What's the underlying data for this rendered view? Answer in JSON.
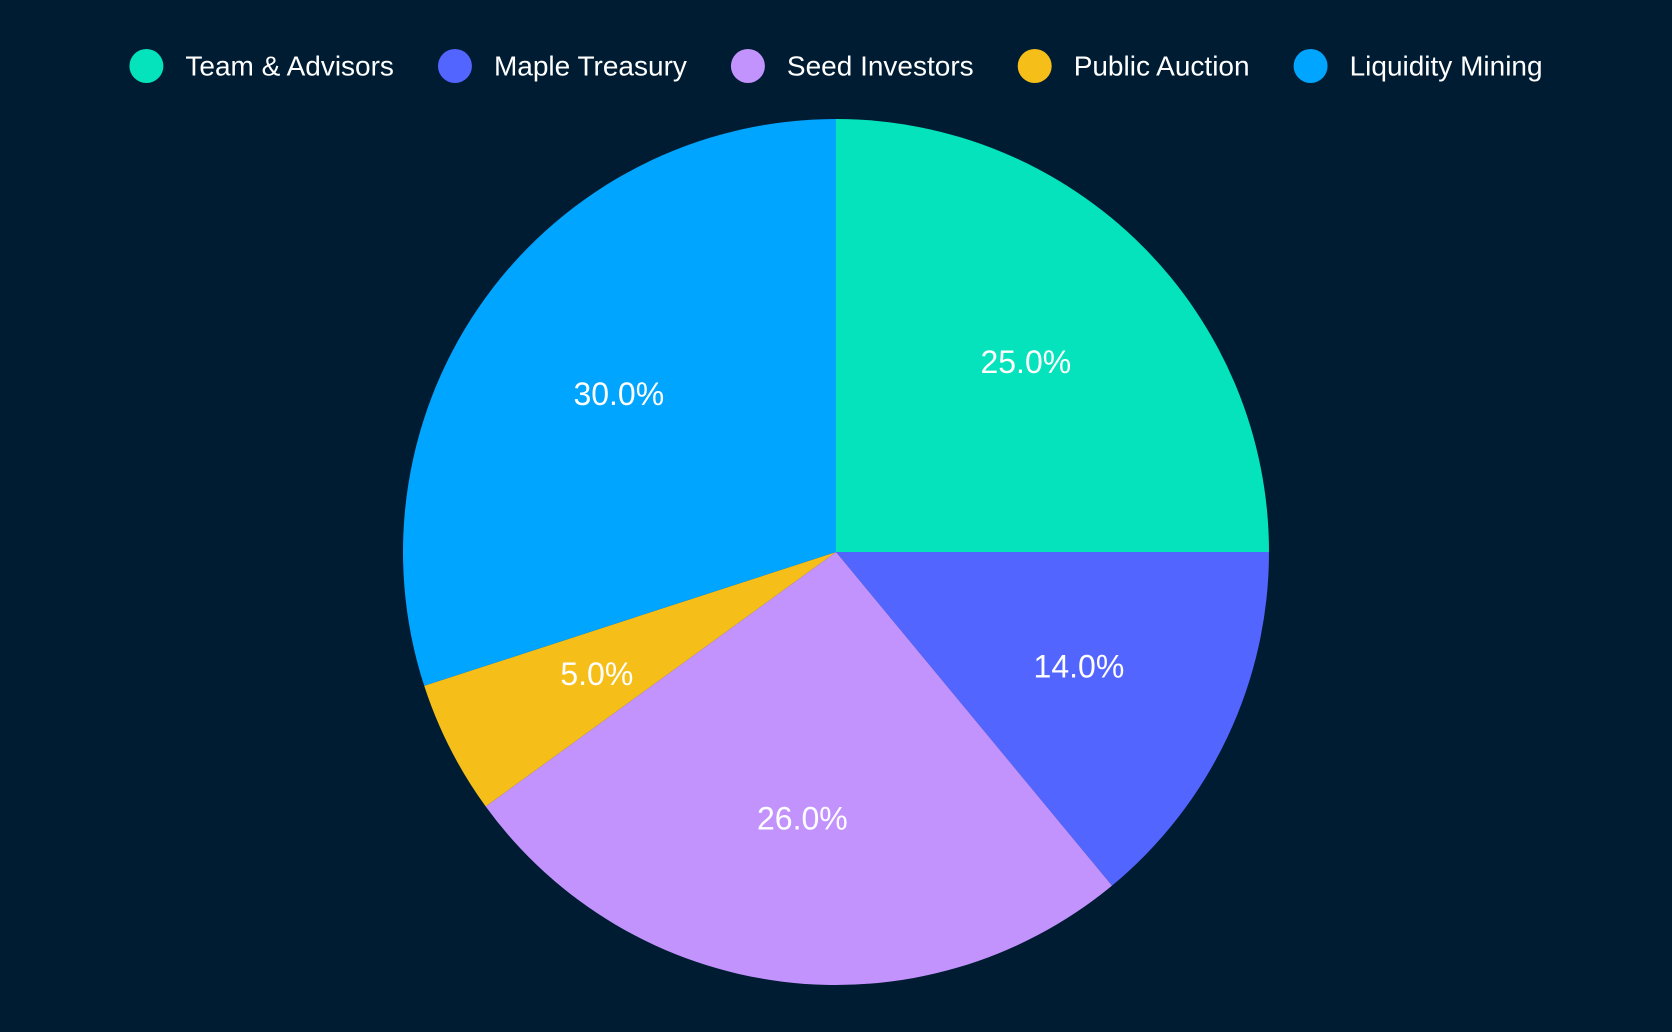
{
  "chart_data": {
    "type": "pie",
    "title": "",
    "legend_position": "top",
    "start_direction": "clockwise from 12 o'clock",
    "slices": [
      {
        "name": "Team & Advisors",
        "value": 25.0,
        "label": "25.0%",
        "color": "#04e3bb"
      },
      {
        "name": "Maple Treasury",
        "value": 14.0,
        "label": "14.0%",
        "color": "#5365ff"
      },
      {
        "name": "Seed Investors",
        "value": 26.0,
        "label": "26.0%",
        "color": "#c393fd"
      },
      {
        "name": "Public Auction",
        "value": 5.0,
        "label": "5.0%",
        "color": "#f5be19"
      },
      {
        "name": "Liquidity Mining",
        "value": 30.0,
        "label": "30.0%",
        "color": "#00a5ff"
      }
    ]
  },
  "colors": {
    "background": "#001c33",
    "text": "#ffffff"
  }
}
